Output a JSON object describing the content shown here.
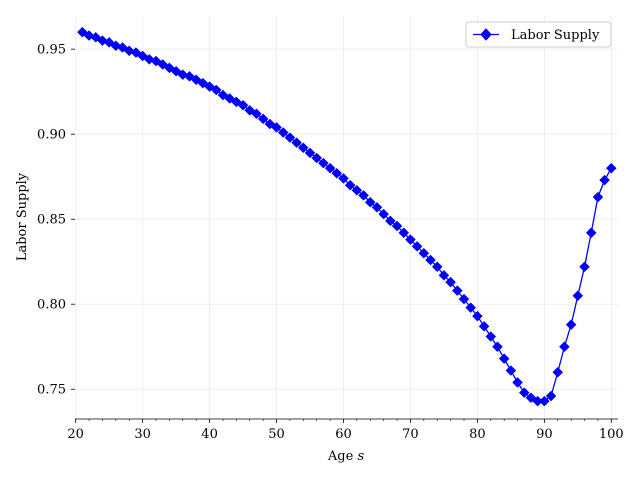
{
  "chart_data": {
    "type": "line",
    "title": "",
    "xlabel": "Age s",
    "xlabel_main": "Age ",
    "xlabel_var": "s",
    "ylabel": "Labor Supply",
    "xlim": [
      19.9,
      101
    ],
    "ylim": [
      0.7325,
      0.9695
    ],
    "xticks": [
      20,
      30,
      40,
      50,
      60,
      70,
      80,
      90,
      100
    ],
    "xtick_labels": [
      "20",
      "30",
      "40",
      "50",
      "60",
      "70",
      "80",
      "90",
      "100"
    ],
    "yticks": [
      0.75,
      0.8,
      0.85,
      0.9,
      0.95
    ],
    "ytick_labels": [
      "0.75",
      "0.80",
      "0.85",
      "0.90",
      "0.95"
    ],
    "grid": true,
    "legend_position": "top-right",
    "series": [
      {
        "name": "Labor Supply",
        "color": "#0000ff",
        "marker": "diamond",
        "x": [
          21,
          22,
          23,
          24,
          25,
          26,
          27,
          28,
          29,
          30,
          31,
          32,
          33,
          34,
          35,
          36,
          37,
          38,
          39,
          40,
          41,
          42,
          43,
          44,
          45,
          46,
          47,
          48,
          49,
          50,
          51,
          52,
          53,
          54,
          55,
          56,
          57,
          58,
          59,
          60,
          61,
          62,
          63,
          64,
          65,
          66,
          67,
          68,
          69,
          70,
          71,
          72,
          73,
          74,
          75,
          76,
          77,
          78,
          79,
          80,
          81,
          82,
          83,
          84,
          85,
          86,
          87,
          88,
          89,
          90,
          91,
          92,
          93,
          94,
          95,
          96,
          97,
          98,
          99,
          100
        ],
        "y": [
          0.96,
          0.958,
          0.957,
          0.955,
          0.954,
          0.952,
          0.951,
          0.949,
          0.948,
          0.946,
          0.944,
          0.943,
          0.941,
          0.939,
          0.937,
          0.935,
          0.934,
          0.932,
          0.93,
          0.928,
          0.926,
          0.923,
          0.921,
          0.919,
          0.917,
          0.914,
          0.912,
          0.909,
          0.906,
          0.904,
          0.901,
          0.898,
          0.895,
          0.892,
          0.889,
          0.886,
          0.883,
          0.88,
          0.877,
          0.874,
          0.87,
          0.867,
          0.864,
          0.86,
          0.857,
          0.853,
          0.849,
          0.846,
          0.842,
          0.838,
          0.834,
          0.83,
          0.826,
          0.822,
          0.817,
          0.813,
          0.808,
          0.803,
          0.798,
          0.793,
          0.787,
          0.781,
          0.775,
          0.768,
          0.761,
          0.754,
          0.748,
          0.745,
          0.743,
          0.743,
          0.746,
          0.76,
          0.775,
          0.788,
          0.805,
          0.822,
          0.842,
          0.863,
          0.873,
          0.88
        ]
      }
    ]
  }
}
